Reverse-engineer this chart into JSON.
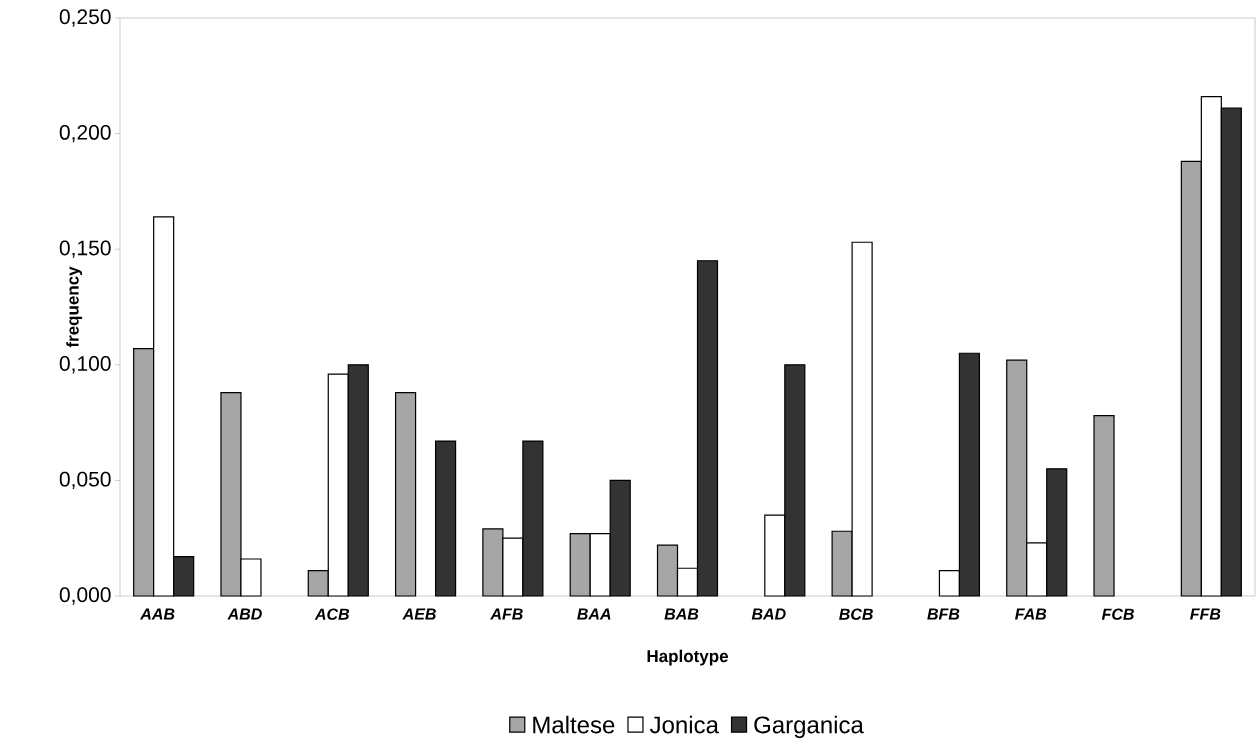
{
  "chart_data": {
    "type": "bar",
    "xlabel": "Haplotype",
    "ylabel": "frequency",
    "categories": [
      "AAB",
      "ABD",
      "ACB",
      "AEB",
      "AFB",
      "BAA",
      "BAB",
      "BAD",
      "BCB",
      "BFB",
      "FAB",
      "FCB",
      "FFB"
    ],
    "series": [
      {
        "name": "Maltese",
        "color": "#a6a6a6",
        "values": [
          0.107,
          0.088,
          0.011,
          0.088,
          0.029,
          0.027,
          0.022,
          null,
          0.028,
          null,
          0.102,
          0.078,
          0.188
        ]
      },
      {
        "name": "Jonica",
        "color": "#ffffff",
        "values": [
          0.164,
          0.016,
          0.096,
          null,
          0.025,
          0.027,
          0.012,
          0.035,
          0.153,
          0.011,
          0.023,
          null,
          0.216
        ]
      },
      {
        "name": "Garganica",
        "color": "#333333",
        "values": [
          0.017,
          null,
          0.1,
          0.067,
          0.067,
          0.05,
          0.145,
          0.1,
          null,
          0.105,
          0.055,
          null,
          0.211
        ]
      }
    ],
    "ylim": [
      0,
      0.25
    ],
    "yticks": [
      {
        "value": 0,
        "label": "0,000"
      },
      {
        "value": 0.05,
        "label": "0,050"
      },
      {
        "value": 0.1,
        "label": "0,100"
      },
      {
        "value": 0.15,
        "label": "0,150"
      },
      {
        "value": 0.2,
        "label": "0,200"
      },
      {
        "value": 0.25,
        "label": "0,250"
      }
    ],
    "legend": "bottom"
  }
}
